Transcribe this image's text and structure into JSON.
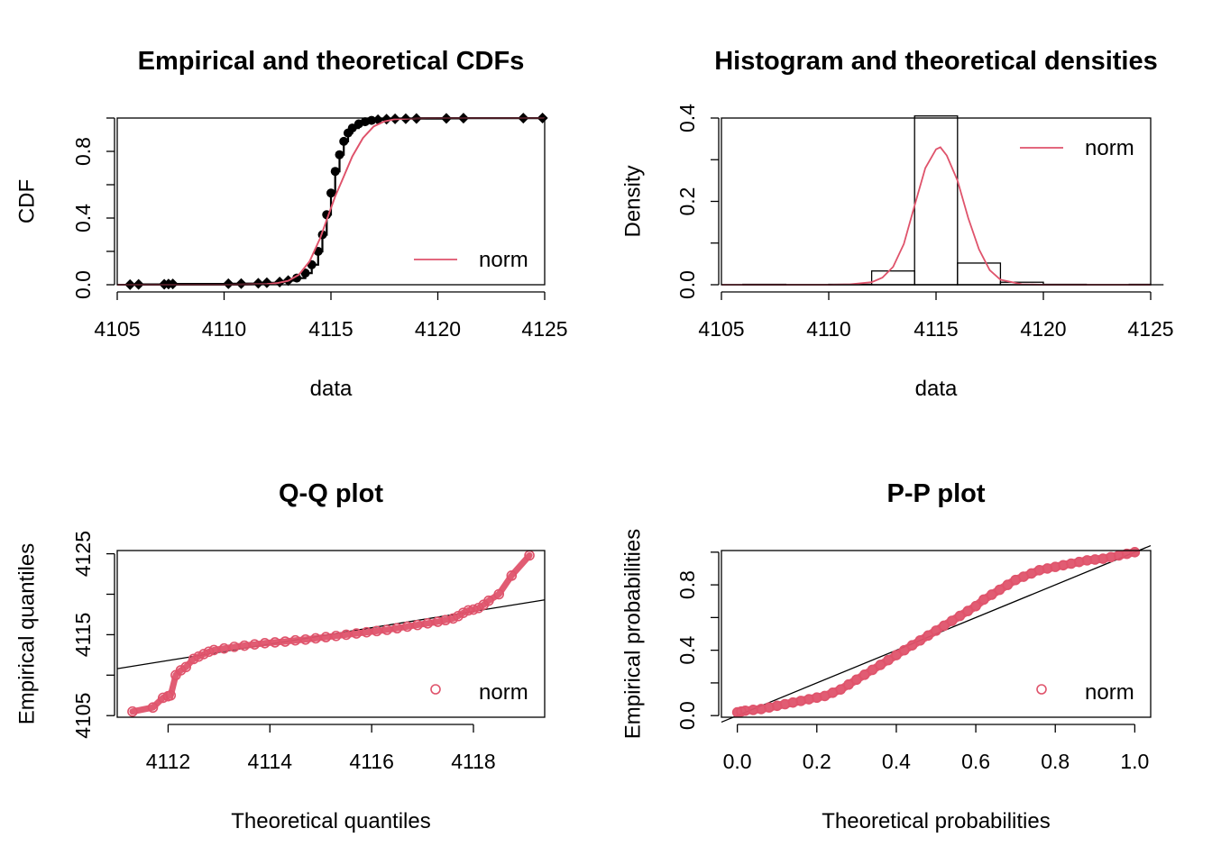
{
  "colors": {
    "norm": "#df536b",
    "axis": "#000000"
  },
  "chart_data": [
    {
      "id": "cdf",
      "type": "line",
      "title": "Empirical and theoretical CDFs",
      "xlabel": "data",
      "ylabel": "CDF",
      "xlim": [
        4105,
        4125
      ],
      "ylim": [
        0,
        1
      ],
      "xticks": [
        4105,
        4110,
        4115,
        4120,
        4125
      ],
      "xtick_labels": [
        "4105",
        "4110",
        "4115",
        "4120",
        "4125"
      ],
      "yticks": [
        0.0,
        0.2,
        0.4,
        0.6,
        0.8,
        1.0
      ],
      "ytick_labels": [
        "0.0",
        "",
        "0.4",
        "",
        "0.8",
        ""
      ],
      "legend": {
        "entries": [
          "norm"
        ],
        "position": "bottom-right"
      },
      "series": [
        {
          "name": "empirical",
          "style": "step-points",
          "x": [
            4105.6,
            4106.0,
            4107.2,
            4107.4,
            4107.6,
            4110.2,
            4110.8,
            4111.6,
            4112.0,
            4112.6,
            4113.0,
            4113.4,
            4113.8,
            4114.1,
            4114.4,
            4114.6,
            4114.8,
            4115.0,
            4115.2,
            4115.4,
            4115.6,
            4115.8,
            4116.0,
            4116.3,
            4116.6,
            4116.9,
            4117.2,
            4117.6,
            4118.0,
            4118.5,
            4119.0,
            4120.4,
            4121.2,
            4124.0,
            4124.9
          ],
          "y": [
            0.001,
            0.002,
            0.003,
            0.004,
            0.005,
            0.006,
            0.007,
            0.009,
            0.012,
            0.016,
            0.025,
            0.04,
            0.07,
            0.12,
            0.2,
            0.3,
            0.42,
            0.55,
            0.68,
            0.78,
            0.86,
            0.91,
            0.94,
            0.965,
            0.978,
            0.986,
            0.99,
            0.993,
            0.995,
            0.996,
            0.997,
            0.998,
            0.999,
            0.9995,
            1.0
          ]
        },
        {
          "name": "norm",
          "style": "line",
          "x": [
            4105,
            4110,
            4111,
            4112,
            4112.5,
            4113,
            4113.5,
            4114,
            4114.5,
            4115,
            4115.2,
            4115.5,
            4116,
            4116.5,
            4117,
            4117.5,
            4118,
            4119,
            4120,
            4125
          ],
          "y": [
            0.0,
            0.0,
            0.001,
            0.004,
            0.01,
            0.024,
            0.06,
            0.14,
            0.28,
            0.46,
            0.53,
            0.62,
            0.77,
            0.88,
            0.95,
            0.98,
            0.993,
            0.999,
            1.0,
            1.0
          ]
        }
      ]
    },
    {
      "id": "hist",
      "type": "bar",
      "title": "Histogram and theoretical densities",
      "xlabel": "data",
      "ylabel": "Density",
      "xlim": [
        4105,
        4125
      ],
      "ylim": [
        0,
        0.4
      ],
      "xticks": [
        4105,
        4110,
        4115,
        4120,
        4125
      ],
      "xtick_labels": [
        "4105",
        "4110",
        "4115",
        "4120",
        "4125"
      ],
      "yticks": [
        0.0,
        0.1,
        0.2,
        0.3,
        0.4
      ],
      "ytick_labels": [
        "0.0",
        "",
        "0.2",
        "",
        "0.4"
      ],
      "legend": {
        "entries": [
          "norm"
        ],
        "position": "top-right"
      },
      "bins": [
        {
          "x0": 4104,
          "x1": 4106,
          "density": 0.0
        },
        {
          "x0": 4106,
          "x1": 4108,
          "density": 0.001
        },
        {
          "x0": 4108,
          "x1": 4110,
          "density": 0.0
        },
        {
          "x0": 4110,
          "x1": 4112,
          "density": 0.001
        },
        {
          "x0": 4112,
          "x1": 4114,
          "density": 0.033
        },
        {
          "x0": 4114,
          "x1": 4116,
          "density": 0.405
        },
        {
          "x0": 4116,
          "x1": 4118,
          "density": 0.052
        },
        {
          "x0": 4118,
          "x1": 4120,
          "density": 0.006
        },
        {
          "x0": 4120,
          "x1": 4122,
          "density": 0.001
        },
        {
          "x0": 4122,
          "x1": 4124,
          "density": 0.0
        },
        {
          "x0": 4124,
          "x1": 4126,
          "density": 0.001
        }
      ],
      "series": [
        {
          "name": "norm",
          "style": "line",
          "x": [
            4105,
            4110,
            4111,
            4112,
            4112.5,
            4113,
            4113.5,
            4114,
            4114.5,
            4115,
            4115.2,
            4115.5,
            4116,
            4116.5,
            4117,
            4117.5,
            4118,
            4119,
            4120,
            4125
          ],
          "y": [
            0.0,
            0.0,
            0.001,
            0.006,
            0.017,
            0.043,
            0.098,
            0.19,
            0.28,
            0.325,
            0.33,
            0.31,
            0.25,
            0.16,
            0.085,
            0.035,
            0.012,
            0.001,
            0.0,
            0.0
          ]
        }
      ]
    },
    {
      "id": "qq",
      "type": "scatter",
      "title": "Q-Q plot",
      "xlabel": "Theoretical quantiles",
      "ylabel": "Empirical quantiles",
      "xlim": [
        4111,
        4119.4
      ],
      "ylim": [
        4104.8,
        4125.4
      ],
      "xticks": [
        4112,
        4114,
        4116,
        4118
      ],
      "xtick_labels": [
        "4112",
        "4114",
        "4116",
        "4118"
      ],
      "yticks": [
        4105,
        4110,
        4115,
        4120,
        4125
      ],
      "ytick_labels": [
        "4105",
        "",
        "4115",
        "",
        "4125"
      ],
      "legend": {
        "entries": [
          "norm"
        ],
        "position": "bottom-right"
      },
      "reference_line": {
        "x": [
          4111,
          4119.4
        ],
        "y": [
          4110.8,
          4119.3
        ]
      },
      "series": [
        {
          "name": "norm",
          "style": "points",
          "x": [
            4111.3,
            4111.7,
            4111.9,
            4112.0,
            4112.05,
            4112.15,
            4112.25,
            4112.35,
            4112.5,
            4112.6,
            4112.7,
            4112.8,
            4112.9,
            4113.1,
            4113.3,
            4113.5,
            4113.7,
            4113.9,
            4114.1,
            4114.3,
            4114.5,
            4114.7,
            4114.9,
            4115.1,
            4115.3,
            4115.5,
            4115.7,
            4115.9,
            4116.1,
            4116.3,
            4116.5,
            4116.7,
            4116.9,
            4117.1,
            4117.3,
            4117.45,
            4117.6,
            4117.7,
            4117.8,
            4117.9,
            4118.0,
            4118.1,
            4118.2,
            4118.3,
            4118.5,
            4118.75,
            4119.1
          ],
          "y": [
            4105.5,
            4106.0,
            4107.2,
            4107.4,
            4107.5,
            4110.0,
            4110.6,
            4111.0,
            4112.0,
            4112.3,
            4112.6,
            4112.9,
            4113.1,
            4113.3,
            4113.5,
            4113.65,
            4113.8,
            4113.95,
            4114.05,
            4114.15,
            4114.3,
            4114.4,
            4114.55,
            4114.7,
            4114.85,
            4115.0,
            4115.15,
            4115.3,
            4115.45,
            4115.6,
            4115.8,
            4116.0,
            4116.2,
            4116.4,
            4116.6,
            4116.8,
            4117.0,
            4117.3,
            4117.7,
            4118.0,
            4118.1,
            4118.3,
            4118.7,
            4119.2,
            4120.0,
            4122.3,
            4124.8
          ]
        }
      ]
    },
    {
      "id": "pp",
      "type": "scatter",
      "title": "P-P plot",
      "xlabel": "Theoretical probabilities",
      "ylabel": "Empirical probabilities",
      "xlim": [
        -0.04,
        1.04
      ],
      "ylim": [
        -0.01,
        1.01
      ],
      "xticks": [
        0.0,
        0.2,
        0.4,
        0.6,
        0.8,
        1.0
      ],
      "xtick_labels": [
        "0.0",
        "0.2",
        "0.4",
        "0.6",
        "0.8",
        "1.0"
      ],
      "yticks": [
        0.0,
        0.2,
        0.4,
        0.6,
        0.8,
        1.0
      ],
      "ytick_labels": [
        "0.0",
        "",
        "0.4",
        "",
        "0.8",
        ""
      ],
      "legend": {
        "entries": [
          "norm"
        ],
        "position": "bottom-right"
      },
      "reference_line": {
        "x": [
          -0.04,
          1.04
        ],
        "y": [
          -0.04,
          1.04
        ]
      },
      "series": [
        {
          "name": "norm",
          "style": "points",
          "x": [
            0.0,
            0.01,
            0.02,
            0.04,
            0.06,
            0.08,
            0.1,
            0.12,
            0.14,
            0.16,
            0.18,
            0.2,
            0.22,
            0.24,
            0.26,
            0.28,
            0.3,
            0.32,
            0.34,
            0.36,
            0.38,
            0.4,
            0.42,
            0.44,
            0.46,
            0.48,
            0.5,
            0.52,
            0.54,
            0.56,
            0.58,
            0.6,
            0.62,
            0.64,
            0.66,
            0.68,
            0.7,
            0.72,
            0.74,
            0.76,
            0.78,
            0.8,
            0.82,
            0.84,
            0.86,
            0.88,
            0.9,
            0.92,
            0.94,
            0.96,
            0.98,
            1.0
          ],
          "y": [
            0.02,
            0.025,
            0.03,
            0.035,
            0.04,
            0.05,
            0.06,
            0.07,
            0.08,
            0.09,
            0.1,
            0.11,
            0.12,
            0.14,
            0.16,
            0.19,
            0.22,
            0.25,
            0.28,
            0.31,
            0.34,
            0.37,
            0.4,
            0.43,
            0.46,
            0.49,
            0.52,
            0.55,
            0.58,
            0.61,
            0.64,
            0.67,
            0.71,
            0.74,
            0.77,
            0.8,
            0.83,
            0.85,
            0.87,
            0.89,
            0.9,
            0.91,
            0.92,
            0.93,
            0.94,
            0.95,
            0.955,
            0.96,
            0.97,
            0.98,
            0.99,
            1.0
          ]
        }
      ]
    }
  ]
}
